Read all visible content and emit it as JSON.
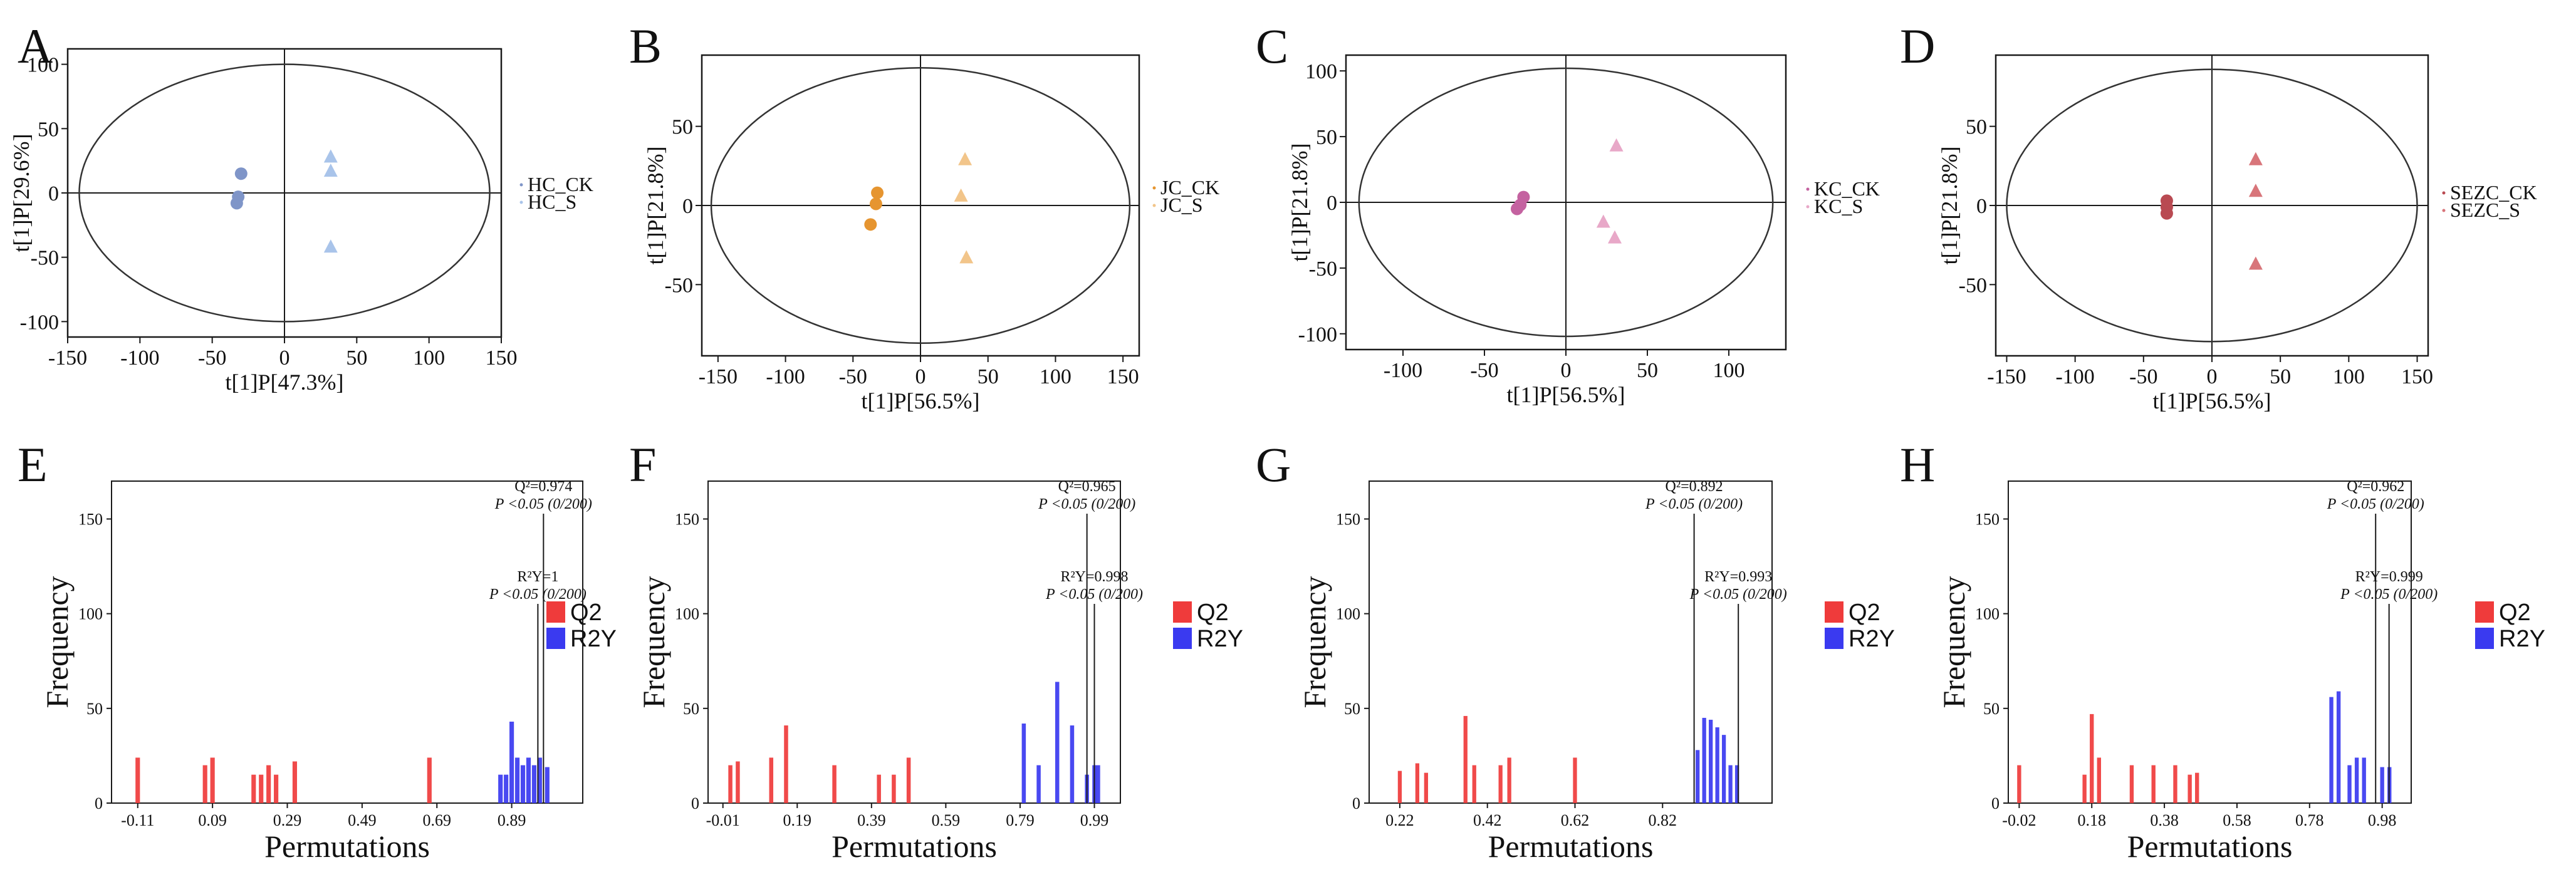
{
  "colors": {
    "axis": "#1a1a1a",
    "q2": "#ef3b3b",
    "r2y": "#3a3af0",
    "overlap": "#6a1a6a"
  },
  "chart_data": [
    {
      "id": "A",
      "type": "scatter",
      "panel_label": "A",
      "xlabel": "t[1]P[47.3%]",
      "ylabel": "t[1]P[29.6%]",
      "xlim": [
        -150,
        150
      ],
      "ylim": [
        -112,
        112
      ],
      "xticks": [
        -150,
        -100,
        -50,
        0,
        50,
        100,
        150
      ],
      "yticks": [
        -100,
        -50,
        0,
        50,
        100
      ],
      "ellipse": {
        "rx": 142,
        "ry": 100
      },
      "series": [
        {
          "name": "HC_CK",
          "marker": "circle",
          "color": "#7f95c8",
          "points": [
            [
              -30,
              15
            ],
            [
              -32,
              -3
            ],
            [
              -33,
              -8
            ]
          ]
        },
        {
          "name": "HC_S",
          "marker": "triangle",
          "color": "#a9c4ea",
          "points": [
            [
              32,
              28
            ],
            [
              32,
              17
            ],
            [
              32,
              -42
            ]
          ]
        }
      ]
    },
    {
      "id": "B",
      "type": "scatter",
      "panel_label": "B",
      "xlabel": "t[1]P[56.5%]",
      "ylabel": "t[1]P[21.8%]",
      "xlim": [
        -162,
        162
      ],
      "ylim": [
        -95,
        95
      ],
      "xticks": [
        -150,
        -100,
        -50,
        0,
        50,
        100,
        150
      ],
      "yticks": [
        -50,
        0,
        50
      ],
      "ellipse": {
        "rx": 155,
        "ry": 87
      },
      "series": [
        {
          "name": "JC_CK",
          "marker": "circle",
          "color": "#e69530",
          "points": [
            [
              -32,
              8
            ],
            [
              -33,
              1
            ],
            [
              -37,
              -12
            ]
          ]
        },
        {
          "name": "JC_S",
          "marker": "triangle",
          "color": "#f2c58a",
          "points": [
            [
              33,
              29
            ],
            [
              30,
              6
            ],
            [
              34,
              -33
            ]
          ]
        }
      ]
    },
    {
      "id": "C",
      "type": "scatter",
      "panel_label": "C",
      "xlabel": "t[1]P[56.5%]",
      "ylabel": "t[1]P[21.8%]",
      "xlim": [
        -135,
        135
      ],
      "ylim": [
        -112,
        112
      ],
      "xticks": [
        -100,
        -50,
        0,
        50,
        100
      ],
      "yticks": [
        -100,
        -50,
        0,
        50,
        100
      ],
      "ellipse": {
        "rx": 127,
        "ry": 102
      },
      "series": [
        {
          "name": "KC_CK",
          "marker": "circle",
          "color": "#c462a0",
          "points": [
            [
              -26,
              4
            ],
            [
              -28,
              -2
            ],
            [
              -30,
              -5
            ]
          ]
        },
        {
          "name": "KC_S",
          "marker": "triangle",
          "color": "#e8a8c8",
          "points": [
            [
              31,
              43
            ],
            [
              23,
              -15
            ],
            [
              30,
              -27
            ]
          ]
        }
      ]
    },
    {
      "id": "D",
      "type": "scatter",
      "panel_label": "D",
      "xlabel": "t[1]P[56.5%]",
      "ylabel": "t[1]P[21.8%]",
      "xlim": [
        -158,
        158
      ],
      "ylim": [
        -95,
        95
      ],
      "xticks": [
        -150,
        -100,
        -50,
        0,
        50,
        100,
        150
      ],
      "yticks": [
        -50,
        0,
        50
      ],
      "ellipse": {
        "rx": 150,
        "ry": 86
      },
      "series": [
        {
          "name": "SEZC_CK",
          "marker": "circle",
          "color": "#b94a52",
          "points": [
            [
              -33,
              3
            ],
            [
              -33,
              -1
            ],
            [
              -33,
              -5
            ]
          ]
        },
        {
          "name": "SEZC_S",
          "marker": "triangle",
          "color": "#d8757a",
          "points": [
            [
              32,
              29
            ],
            [
              32,
              9
            ],
            [
              32,
              -37
            ]
          ]
        }
      ]
    },
    {
      "id": "E",
      "type": "bar",
      "panel_label": "E",
      "xlabel": "Permutations",
      "ylabel": "Frequency",
      "xlim": [
        -0.18,
        1.08
      ],
      "ylim": [
        0,
        170
      ],
      "xticks": [
        -0.11,
        0.09,
        0.29,
        0.49,
        0.69,
        0.89
      ],
      "yticks": [
        0,
        50,
        100,
        150
      ],
      "bar_width": 0.012,
      "legend": [
        "Q2",
        "R2Y"
      ],
      "series": [
        {
          "name": "Q2",
          "color": "#ef3b3b",
          "bars": [
            [
              -0.11,
              24
            ],
            [
              0.07,
              20
            ],
            [
              0.09,
              24
            ],
            [
              0.2,
              15
            ],
            [
              0.22,
              15
            ],
            [
              0.24,
              20
            ],
            [
              0.26,
              15
            ],
            [
              0.31,
              22
            ],
            [
              0.67,
              24
            ]
          ]
        },
        {
          "name": "R2Y",
          "color": "#3a3af0",
          "bars": [
            [
              0.86,
              15
            ],
            [
              0.875,
              15
            ],
            [
              0.89,
              43
            ],
            [
              0.905,
              24
            ],
            [
              0.92,
              20
            ],
            [
              0.935,
              24
            ],
            [
              0.95,
              20
            ],
            [
              0.965,
              24
            ],
            [
              0.985,
              19
            ]
          ]
        }
      ],
      "annotations": [
        {
          "line1": "Q²=0.974",
          "line2": "P <0.05 (0/200)",
          "x": 0.975,
          "y": 0
        },
        {
          "line1": "R²Y=1",
          "line2": "P <0.05 (0/200)",
          "x": 0.96,
          "y": 0
        }
      ]
    },
    {
      "id": "F",
      "type": "bar",
      "panel_label": "F",
      "xlabel": "Permutations",
      "ylabel": "Frequency",
      "xlim": [
        -0.05,
        1.06
      ],
      "ylim": [
        0,
        170
      ],
      "xticks": [
        -0.01,
        0.19,
        0.39,
        0.59,
        0.79,
        0.99
      ],
      "yticks": [
        0,
        50,
        100,
        150
      ],
      "bar_width": 0.011,
      "legend": [
        "Q2",
        "R2Y"
      ],
      "series": [
        {
          "name": "Q2",
          "color": "#ef3b3b",
          "bars": [
            [
              0.01,
              20
            ],
            [
              0.03,
              22
            ],
            [
              0.12,
              24
            ],
            [
              0.16,
              41
            ],
            [
              0.29,
              20
            ],
            [
              0.41,
              15
            ],
            [
              0.45,
              15
            ],
            [
              0.49,
              24
            ]
          ]
        },
        {
          "name": "R2Y",
          "color": "#3a3af0",
          "bars": [
            [
              0.8,
              42
            ],
            [
              0.84,
              20
            ],
            [
              0.89,
              64
            ],
            [
              0.93,
              41
            ],
            [
              0.97,
              15
            ],
            [
              0.99,
              20
            ],
            [
              1.0,
              20
            ]
          ]
        }
      ],
      "annotations": [
        {
          "line1": "Q²=0.965",
          "line2": "P <0.05 (0/200)",
          "x": 0.97,
          "y": 0
        },
        {
          "line1": "R²Y=0.998",
          "line2": "P <0.05 (0/200)",
          "x": 0.99,
          "y": 0
        }
      ]
    },
    {
      "id": "G",
      "type": "bar",
      "panel_label": "G",
      "xlabel": "Permutations",
      "ylabel": "Frequency",
      "xlim": [
        0.15,
        1.07
      ],
      "ylim": [
        0,
        170
      ],
      "xticks": [
        0.22,
        0.42,
        0.62,
        0.82
      ],
      "yticks": [
        0,
        50,
        100,
        150
      ],
      "bar_width": 0.009,
      "legend": [
        "Q2",
        "R2Y"
      ],
      "series": [
        {
          "name": "Q2",
          "color": "#ef3b3b",
          "bars": [
            [
              0.22,
              17
            ],
            [
              0.26,
              21
            ],
            [
              0.28,
              16
            ],
            [
              0.37,
              46
            ],
            [
              0.39,
              20
            ],
            [
              0.45,
              20
            ],
            [
              0.47,
              24
            ],
            [
              0.62,
              24
            ]
          ]
        },
        {
          "name": "R2Y",
          "color": "#3a3af0",
          "bars": [
            [
              0.9,
              28
            ],
            [
              0.915,
              45
            ],
            [
              0.93,
              44
            ],
            [
              0.945,
              40
            ],
            [
              0.96,
              36
            ],
            [
              0.975,
              20
            ],
            [
              0.99,
              20
            ]
          ]
        }
      ],
      "annotations": [
        {
          "line1": "Q²=0.892",
          "line2": "P <0.05 (0/200)",
          "x": 0.892,
          "y": 0
        },
        {
          "line1": "R²Y=0.993",
          "line2": "P <0.05 (0/200)",
          "x": 0.993,
          "y": 0
        }
      ]
    },
    {
      "id": "H",
      "type": "bar",
      "panel_label": "H",
      "xlabel": "Permutations",
      "ylabel": "Frequency",
      "xlim": [
        -0.05,
        1.06
      ],
      "ylim": [
        0,
        170
      ],
      "xticks": [
        -0.02,
        0.18,
        0.38,
        0.58,
        0.78,
        0.98
      ],
      "yticks": [
        0,
        50,
        100,
        150
      ],
      "bar_width": 0.011,
      "legend": [
        "Q2",
        "R2Y"
      ],
      "series": [
        {
          "name": "Q2",
          "color": "#ef3b3b",
          "bars": [
            [
              -0.02,
              20
            ],
            [
              0.16,
              15
            ],
            [
              0.18,
              47
            ],
            [
              0.2,
              24
            ],
            [
              0.29,
              20
            ],
            [
              0.35,
              20
            ],
            [
              0.41,
              20
            ],
            [
              0.45,
              15
            ],
            [
              0.47,
              16
            ]
          ]
        },
        {
          "name": "R2Y",
          "color": "#3a3af0",
          "bars": [
            [
              0.84,
              56
            ],
            [
              0.86,
              59
            ],
            [
              0.89,
              20
            ],
            [
              0.91,
              24
            ],
            [
              0.93,
              24
            ],
            [
              0.98,
              19
            ],
            [
              1.0,
              19
            ]
          ]
        }
      ],
      "annotations": [
        {
          "line1": "Q²=0.962",
          "line2": "P <0.05 (0/200)",
          "x": 0.962,
          "y": 0
        },
        {
          "line1": "R²Y=0.999",
          "line2": "P <0.05 (0/200)",
          "x": 0.999,
          "y": 0
        }
      ]
    }
  ]
}
